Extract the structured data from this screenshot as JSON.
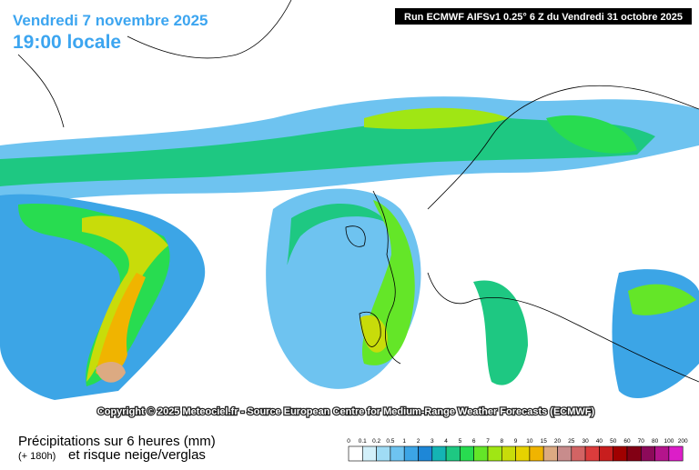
{
  "header": {
    "date": "Vendredi 7 novembre 2025",
    "time": "19:00 locale",
    "run": "Run ECMWF AIFSv1 0.25° 6 Z du Vendredi 31 octobre 2025"
  },
  "copyright": "Copyright © 2025 Meteociel.fr - Source European Centre for Medium-Range Weather Forecasts (ECMWF)",
  "footer": {
    "title": "Précipitations sur 6 heures (mm)",
    "lead": "(+ 180h)",
    "subtitle": "et risque neige/verglas"
  },
  "legend": {
    "labels": [
      "0",
      "0.1",
      "0.2",
      "0.5",
      "1",
      "2",
      "3",
      "4",
      "5",
      "6",
      "7",
      "8",
      "9",
      "10",
      "15",
      "20",
      "25",
      "30",
      "40",
      "50",
      "60",
      "70",
      "80",
      "100",
      "200"
    ],
    "colors": [
      "#ffffff",
      "#d2f0fa",
      "#a0dcf5",
      "#6ec3f0",
      "#3ca5e6",
      "#1e87d7",
      "#14b4b4",
      "#1ec882",
      "#28dc50",
      "#64e628",
      "#a0e614",
      "#c8dc0a",
      "#e6d200",
      "#f0b400",
      "#dcaa82",
      "#c88c8c",
      "#d26464",
      "#dc3c3c",
      "#c81e1e",
      "#a00000",
      "#820014",
      "#8c0a5a",
      "#b4148c",
      "#dc1ec8"
    ]
  }
}
